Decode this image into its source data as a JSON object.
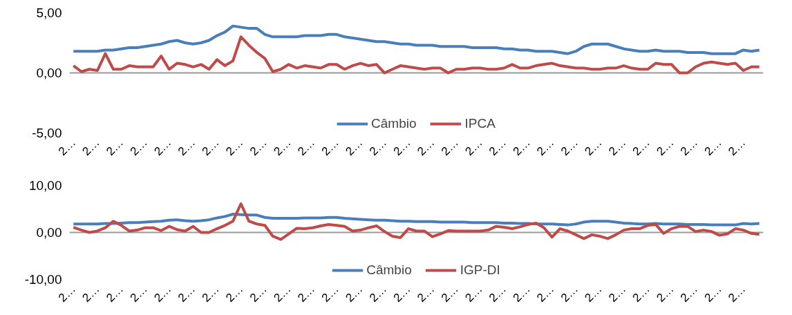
{
  "chart_data": [
    {
      "type": "line",
      "categories": [
        "2…",
        null,
        null,
        "2…",
        null,
        null,
        "2…",
        null,
        null,
        "2…",
        null,
        null,
        "2…",
        null,
        null,
        "2…",
        null,
        null,
        "2…",
        null,
        null,
        "2…",
        null,
        null,
        "2…",
        null,
        null,
        "2…",
        null,
        null,
        "2…",
        null,
        null,
        "2…",
        null,
        null,
        "2…",
        null,
        null,
        "2…",
        null,
        null,
        "2…",
        null,
        null,
        "2…",
        null,
        null,
        "2…",
        null,
        null,
        "2…",
        null,
        null,
        "2…",
        null,
        null,
        "2…",
        null,
        null,
        "2…",
        null,
        null,
        "2…",
        null,
        null,
        "2…",
        null,
        null,
        "2…",
        null,
        null,
        "2…",
        null,
        null,
        "2…",
        null,
        null,
        "2…",
        null,
        null,
        "2…",
        null,
        null,
        "2…",
        null,
        null
      ],
      "series": [
        {
          "name": "Câmbio",
          "color": "#4a7ebb",
          "values": [
            1.8,
            1.8,
            1.8,
            1.8,
            1.9,
            1.9,
            2.0,
            2.1,
            2.1,
            2.2,
            2.3,
            2.4,
            2.6,
            2.7,
            2.5,
            2.4,
            2.5,
            2.7,
            3.1,
            3.4,
            3.9,
            3.8,
            3.7,
            3.7,
            3.2,
            3.0,
            3.0,
            3.0,
            3.0,
            3.1,
            3.1,
            3.1,
            3.2,
            3.2,
            3.0,
            2.9,
            2.8,
            2.7,
            2.6,
            2.6,
            2.5,
            2.4,
            2.4,
            2.3,
            2.3,
            2.3,
            2.2,
            2.2,
            2.2,
            2.2,
            2.1,
            2.1,
            2.1,
            2.1,
            2.0,
            2.0,
            1.9,
            1.9,
            1.8,
            1.8,
            1.8,
            1.7,
            1.6,
            1.8,
            2.2,
            2.4,
            2.4,
            2.4,
            2.2,
            2.0,
            1.9,
            1.8,
            1.8,
            1.9,
            1.8,
            1.8,
            1.8,
            1.7,
            1.7,
            1.7,
            1.6,
            1.6,
            1.6,
            1.6,
            1.9,
            1.8,
            1.9
          ]
        },
        {
          "name": "IPCA",
          "color": "#be4b48",
          "values": [
            0.6,
            0.1,
            0.3,
            0.2,
            1.6,
            0.3,
            0.3,
            0.6,
            0.5,
            0.5,
            0.5,
            1.4,
            0.3,
            0.8,
            0.7,
            0.5,
            0.7,
            0.3,
            1.1,
            0.6,
            1.0,
            3.0,
            2.3,
            1.7,
            1.2,
            0.1,
            0.3,
            0.7,
            0.4,
            0.6,
            0.5,
            0.4,
            0.7,
            0.7,
            0.3,
            0.6,
            0.8,
            0.6,
            0.7,
            0.0,
            0.3,
            0.6,
            0.5,
            0.4,
            0.3,
            0.4,
            0.4,
            0.0,
            0.3,
            0.3,
            0.4,
            0.4,
            0.3,
            0.3,
            0.4,
            0.7,
            0.4,
            0.4,
            0.6,
            0.7,
            0.8,
            0.6,
            0.5,
            0.4,
            0.4,
            0.3,
            0.3,
            0.4,
            0.4,
            0.6,
            0.4,
            0.3,
            0.3,
            0.8,
            0.7,
            0.7,
            0.0,
            0.0,
            0.5,
            0.8,
            0.9,
            0.8,
            0.7,
            0.8,
            0.2,
            0.5,
            0.5
          ]
        }
      ],
      "ylim": [
        -5,
        5
      ],
      "yticks": [
        {
          "value": -5,
          "label": "-5,00"
        },
        {
          "value": 0,
          "label": "0,00"
        },
        {
          "value": 5,
          "label": "5,00"
        }
      ],
      "grid": "y",
      "legend": "bottom",
      "line_style": "solid",
      "marker": "none"
    },
    {
      "type": "line",
      "categories": [
        "2…",
        null,
        null,
        "2…",
        null,
        null,
        "2…",
        null,
        null,
        "2…",
        null,
        null,
        "2…",
        null,
        null,
        "2…",
        null,
        null,
        "2…",
        null,
        null,
        "2…",
        null,
        null,
        "2…",
        null,
        null,
        "2…",
        null,
        null,
        "2…",
        null,
        null,
        "2…",
        null,
        null,
        "2…",
        null,
        null,
        "2…",
        null,
        null,
        "2…",
        null,
        null,
        "2…",
        null,
        null,
        "2…",
        null,
        null,
        "2…",
        null,
        null,
        "2…",
        null,
        null,
        "2…",
        null,
        null,
        "2…",
        null,
        null,
        "2…",
        null,
        null,
        "2…",
        null,
        null,
        "2…",
        null,
        null,
        "2…",
        null,
        null,
        "2…",
        null,
        null,
        "2…",
        null,
        null,
        "2…",
        null,
        null,
        "2…",
        null,
        null
      ],
      "series": [
        {
          "name": "Câmbio",
          "color": "#4a7ebb",
          "values": [
            1.8,
            1.8,
            1.8,
            1.8,
            1.9,
            1.9,
            2.0,
            2.1,
            2.1,
            2.2,
            2.3,
            2.4,
            2.6,
            2.7,
            2.5,
            2.4,
            2.5,
            2.7,
            3.1,
            3.4,
            3.9,
            3.8,
            3.7,
            3.7,
            3.2,
            3.0,
            3.0,
            3.0,
            3.0,
            3.1,
            3.1,
            3.1,
            3.2,
            3.2,
            3.0,
            2.9,
            2.8,
            2.7,
            2.6,
            2.6,
            2.5,
            2.4,
            2.4,
            2.3,
            2.3,
            2.3,
            2.2,
            2.2,
            2.2,
            2.2,
            2.1,
            2.1,
            2.1,
            2.1,
            2.0,
            2.0,
            1.9,
            1.9,
            1.8,
            1.8,
            1.8,
            1.7,
            1.6,
            1.8,
            2.2,
            2.4,
            2.4,
            2.4,
            2.2,
            2.0,
            1.9,
            1.8,
            1.8,
            1.9,
            1.8,
            1.8,
            1.8,
            1.7,
            1.7,
            1.7,
            1.6,
            1.6,
            1.6,
            1.6,
            1.9,
            1.8,
            1.9
          ]
        },
        {
          "name": "IGP-DI",
          "color": "#be4b48",
          "values": [
            1.1,
            0.5,
            0.0,
            0.3,
            1.0,
            2.4,
            1.5,
            0.3,
            0.5,
            1.0,
            1.0,
            0.4,
            1.3,
            0.6,
            0.3,
            1.3,
            0.0,
            0.0,
            0.8,
            1.5,
            2.4,
            6.1,
            2.4,
            1.8,
            1.5,
            -0.8,
            -1.5,
            -0.3,
            0.9,
            0.8,
            1.0,
            1.4,
            1.7,
            1.5,
            1.3,
            0.3,
            0.5,
            1.0,
            1.4,
            0.2,
            -0.8,
            -1.1,
            0.8,
            0.3,
            0.3,
            -0.9,
            -0.3,
            0.4,
            0.3,
            0.3,
            0.3,
            0.3,
            0.5,
            1.3,
            1.1,
            0.8,
            1.2,
            1.7,
            2.0,
            1.0,
            -1.0,
            0.8,
            0.3,
            -0.5,
            -1.3,
            -0.5,
            -0.8,
            -1.3,
            -0.5,
            0.5,
            0.8,
            0.8,
            1.5,
            1.7,
            -0.2,
            0.8,
            1.3,
            1.3,
            0.2,
            0.5,
            0.2,
            -0.6,
            -0.3,
            0.8,
            0.5,
            -0.2,
            -0.4
          ]
        }
      ],
      "ylim": [
        -10,
        10
      ],
      "yticks": [
        {
          "value": -10,
          "label": "-10,00"
        },
        {
          "value": 0,
          "label": "0,00"
        },
        {
          "value": 10,
          "label": "10,00"
        }
      ],
      "grid": "y",
      "legend": "bottom",
      "line_style": "solid",
      "marker": "none"
    }
  ]
}
